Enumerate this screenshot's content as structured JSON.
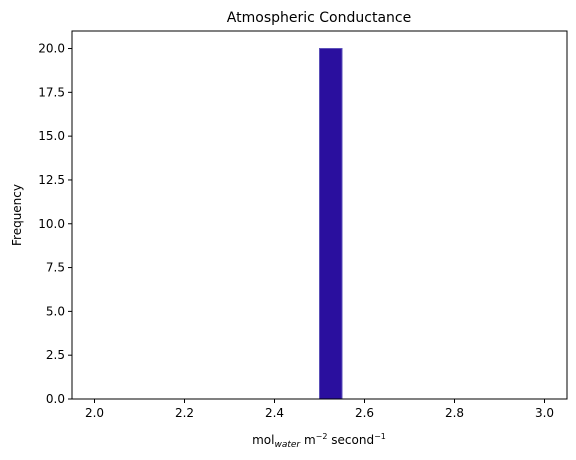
{
  "chart_data": {
    "type": "bar",
    "title": "Atmospheric Conductance",
    "xlabel": {
      "base": "mol",
      "sub": "water",
      "middle": " m",
      "sup1": "−2",
      "tail": " second",
      "sup2": "−1"
    },
    "ylabel": "Frequency",
    "xlim": [
      1.95,
      3.05
    ],
    "ylim": [
      0,
      21
    ],
    "x_ticks": [
      2.0,
      2.2,
      2.4,
      2.6,
      2.8,
      3.0
    ],
    "x_tick_labels": [
      "2.0",
      "2.2",
      "2.4",
      "2.6",
      "2.8",
      "3.0"
    ],
    "y_ticks": [
      0,
      2.5,
      5,
      7.5,
      10,
      12.5,
      15,
      17.5,
      20
    ],
    "y_tick_labels": [
      "0.0",
      "2.5",
      "5.0",
      "7.5",
      "10.0",
      "12.5",
      "15.0",
      "17.5",
      "20.0"
    ],
    "bins": [
      {
        "x0": 2.5,
        "x1": 2.55,
        "count": 20
      }
    ],
    "bar_color": "#2a0f9e",
    "bar_edge_color": "#5a4fb8",
    "grid": false,
    "legend": "none"
  }
}
